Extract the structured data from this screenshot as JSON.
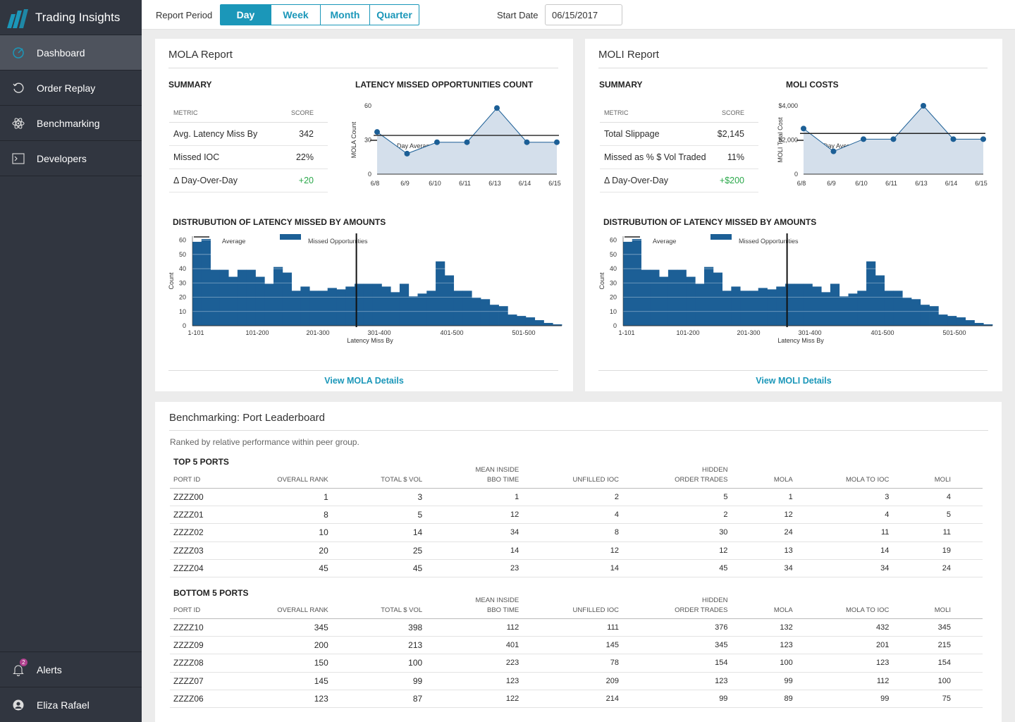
{
  "app": {
    "title": "Trading Insights"
  },
  "nav": {
    "items": [
      {
        "label": "Dashboard",
        "icon": "gauge-icon"
      },
      {
        "label": "Order Replay",
        "icon": "replay-icon"
      },
      {
        "label": "Benchmarking",
        "icon": "atom-icon"
      },
      {
        "label": "Developers",
        "icon": "terminal-icon"
      }
    ],
    "alerts_label": "Alerts",
    "alerts_count": "2",
    "user_name": "Eliza Rafael"
  },
  "toolbar": {
    "period_label": "Report Period",
    "periods": [
      "Day",
      "Week",
      "Month",
      "Quarter"
    ],
    "selected_period": "Day",
    "start_date_label": "Start Date",
    "start_date": "06/15/2017"
  },
  "colors": {
    "accent": "#1b97b9",
    "bar": "#1c5f96",
    "area": "#d4dfeb",
    "positive": "#2aa84a",
    "sidebar": "#313640"
  },
  "mola": {
    "title": "MOLA Report",
    "summary_title": "SUMMARY",
    "col_metric": "METRIC",
    "col_score": "SCORE",
    "rows": [
      {
        "metric": "Avg. Latency Miss By",
        "score": "342"
      },
      {
        "metric": "Missed IOC",
        "score": "22%"
      },
      {
        "metric": "Δ  Day-Over-Day",
        "score": "+20"
      }
    ],
    "chart_title": "LATENCY MISSED OPPORTUNITIES COUNT",
    "dist_title": "DISTRUBUTION OF LATENCY MISSED BY AMOUNTS",
    "link": "View MOLA Details"
  },
  "moli": {
    "title": "MOLI Report",
    "summary_title": "SUMMARY",
    "col_metric": "METRIC",
    "col_score": "SCORE",
    "rows": [
      {
        "metric": "Total Slippage",
        "score": "$2,145"
      },
      {
        "metric": "Missed as % $ Vol Traded",
        "score": "11%"
      },
      {
        "metric": "Δ  Day-Over-Day",
        "score": "+$200"
      }
    ],
    "chart_title": "MOLI COSTS",
    "dist_title": "DISTRUBUTION OF LATENCY MISSED BY AMOUNTS",
    "link": "View MOLI Details"
  },
  "chart_data": [
    {
      "type": "line",
      "id": "mola-line",
      "title": "LATENCY MISSED OPPORTUNITIES COUNT",
      "x": [
        "6/8",
        "6/9",
        "6/10",
        "6/11",
        "6/13",
        "6/14",
        "6/15"
      ],
      "series": [
        {
          "name": "MOLA",
          "values": [
            37,
            18,
            28,
            28,
            58,
            28,
            28
          ]
        }
      ],
      "average": {
        "name": "30-Day Average",
        "value": 34
      },
      "ylabel": "MOLA Count",
      "yticks": [
        "0",
        "30",
        "60"
      ],
      "ylim": [
        0,
        60
      ]
    },
    {
      "type": "line",
      "id": "moli-line",
      "title": "MOLI COSTS",
      "x": [
        "6/8",
        "6/9",
        "6/10",
        "6/11",
        "6/13",
        "6/14",
        "6/15"
      ],
      "series": [
        {
          "name": "MOLI Total Cost",
          "values": [
            2800,
            1400,
            2150,
            2150,
            4200,
            2150,
            2150
          ]
        }
      ],
      "average": {
        "name": "30-Day Average",
        "value": 2500
      },
      "ylabel": "MOLI Total Cost",
      "yticks": [
        "0",
        "$2,000",
        "$4,000"
      ],
      "ylim": [
        0,
        4200
      ]
    },
    {
      "type": "bar",
      "id": "mola-hist",
      "title": "DISTRUBUTION OF LATENCY MISSED BY AMOUNTS",
      "series": [
        {
          "name": "Missed Opportunities",
          "values": [
            60,
            62,
            40,
            40,
            35,
            40,
            40,
            35,
            30,
            42,
            38,
            25,
            28,
            25,
            25,
            27,
            26,
            28,
            30,
            30,
            30,
            28,
            24,
            30,
            21,
            23,
            25,
            46,
            36,
            25,
            25,
            20,
            19,
            15,
            14,
            8,
            7,
            6,
            4,
            2,
            1
          ]
        }
      ],
      "average": {
        "name": "Average",
        "value": "301-400"
      },
      "xticks": [
        "1-101",
        "101-200",
        "201-300",
        "301-400",
        "401-500",
        "501-500"
      ],
      "xlabel": "Latency Miss By",
      "ylabel": "Count",
      "yticks": [
        "0",
        "10",
        "20",
        "30",
        "40",
        "50",
        "60"
      ],
      "ylim": [
        0,
        60
      ]
    },
    {
      "type": "bar",
      "id": "moli-hist",
      "title": "DISTRUBUTION OF LATENCY MISSED BY AMOUNTS",
      "series": [
        {
          "name": "Missed Opportunities",
          "values": [
            60,
            62,
            40,
            40,
            35,
            40,
            40,
            35,
            30,
            42,
            38,
            25,
            28,
            25,
            25,
            27,
            26,
            28,
            30,
            30,
            30,
            28,
            24,
            30,
            21,
            23,
            25,
            46,
            36,
            25,
            25,
            20,
            19,
            15,
            14,
            8,
            7,
            6,
            4,
            2,
            1
          ]
        }
      ],
      "average": {
        "name": "Average",
        "value": "301-400"
      },
      "xticks": [
        "1-101",
        "101-200",
        "201-300",
        "301-400",
        "401-500",
        "501-500"
      ],
      "xlabel": "Latency Miss By",
      "ylabel": "Count",
      "yticks": [
        "0",
        "10",
        "20",
        "30",
        "40",
        "50",
        "60"
      ],
      "ylim": [
        0,
        60
      ]
    }
  ],
  "leaderboard": {
    "title": "Benchmarking: Port Leaderboard",
    "subtitle": "Ranked by relative performance within peer group.",
    "columns": [
      [
        "PORT ID"
      ],
      [
        "OVERALL RANK"
      ],
      [
        "TOTAL $ VOL"
      ],
      [
        "MEAN INSIDE",
        "BBO TIME"
      ],
      [
        "UNFILLED IOC"
      ],
      [
        "HIDDEN",
        "ORDER TRADES"
      ],
      [
        "MOLA"
      ],
      [
        "MOLA TO IOC"
      ],
      [
        "MOLI"
      ]
    ],
    "top_title": "TOP 5 PORTS",
    "top": [
      [
        "ZZZZ00",
        "1",
        "3",
        "1",
        "2",
        "5",
        "1",
        "3",
        "4"
      ],
      [
        "ZZZZ01",
        "8",
        "5",
        "12",
        "4",
        "2",
        "12",
        "4",
        "5"
      ],
      [
        "ZZZZ02",
        "10",
        "14",
        "34",
        "8",
        "30",
        "24",
        "11",
        "11"
      ],
      [
        "ZZZZ03",
        "20",
        "25",
        "14",
        "12",
        "12",
        "13",
        "14",
        "19"
      ],
      [
        "ZZZZ04",
        "45",
        "45",
        "23",
        "14",
        "45",
        "34",
        "34",
        "24"
      ]
    ],
    "bottom_title": "BOTTOM 5 PORTS",
    "bottom": [
      [
        "ZZZZ10",
        "345",
        "398",
        "112",
        "111",
        "376",
        "132",
        "432",
        "345"
      ],
      [
        "ZZZZ09",
        "200",
        "213",
        "401",
        "145",
        "345",
        "123",
        "201",
        "215"
      ],
      [
        "ZZZZ08",
        "150",
        "100",
        "223",
        "78",
        "154",
        "100",
        "123",
        "154"
      ],
      [
        "ZZZZ07",
        "145",
        "99",
        "123",
        "209",
        "123",
        "99",
        "112",
        "100"
      ],
      [
        "ZZZZ06",
        "123",
        "87",
        "122",
        "214",
        "99",
        "89",
        "99",
        "75"
      ]
    ]
  }
}
